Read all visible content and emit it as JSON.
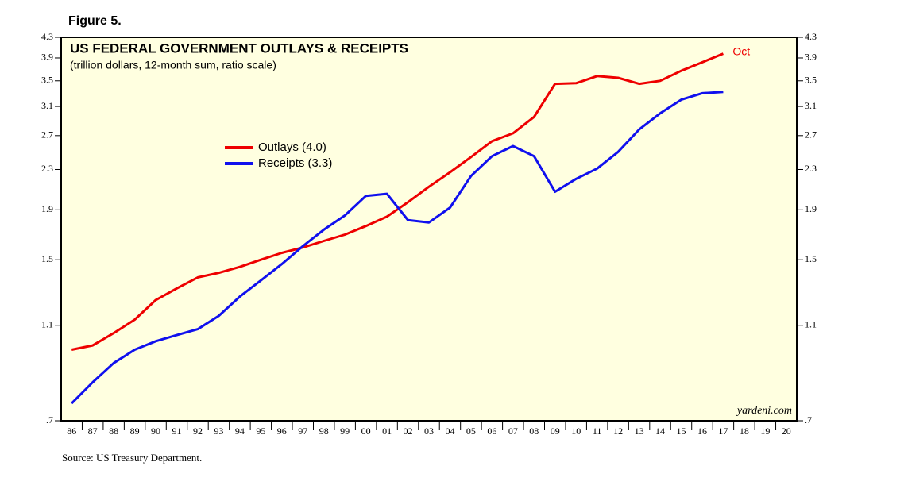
{
  "figure_label": "Figure 5.",
  "chart_data": {
    "type": "line",
    "title": "US FEDERAL GOVERNMENT OUTLAYS & RECEIPTS",
    "subtitle": "(trillion dollars, 12-month sum, ratio scale)",
    "categories": [
      "86",
      "87",
      "88",
      "89",
      "90",
      "91",
      "92",
      "93",
      "94",
      "95",
      "96",
      "97",
      "98",
      "99",
      "00",
      "01",
      "02",
      "03",
      "04",
      "05",
      "06",
      "07",
      "08",
      "09",
      "10",
      "11",
      "12",
      "13",
      "14",
      "15",
      "16",
      "17",
      "18",
      "19",
      "20"
    ],
    "series": [
      {
        "name": "Outlays (4.0)",
        "color": "#ee0000",
        "values": [
          0.98,
          1.0,
          1.06,
          1.13,
          1.24,
          1.31,
          1.38,
          1.41,
          1.45,
          1.5,
          1.55,
          1.59,
          1.64,
          1.69,
          1.76,
          1.84,
          1.97,
          2.12,
          2.27,
          2.44,
          2.63,
          2.73,
          2.95,
          3.45,
          3.46,
          3.58,
          3.55,
          3.45,
          3.5,
          3.67,
          3.82,
          3.98,
          null,
          null,
          null
        ]
      },
      {
        "name": "Receipts (3.3)",
        "color": "#1010ee",
        "values": [
          0.76,
          0.84,
          0.92,
          0.98,
          1.02,
          1.05,
          1.08,
          1.15,
          1.26,
          1.36,
          1.47,
          1.6,
          1.73,
          1.85,
          2.03,
          2.05,
          1.81,
          1.79,
          1.92,
          2.23,
          2.45,
          2.57,
          2.45,
          2.07,
          2.2,
          2.31,
          2.5,
          2.78,
          3.0,
          3.2,
          3.3,
          3.32,
          null,
          null,
          null
        ]
      }
    ],
    "yscale": "log",
    "ylim": [
      0.7,
      4.3
    ],
    "yticks": [
      {
        "value": 0.7,
        "label": ".7"
      },
      1.1,
      1.5,
      1.9,
      2.3,
      2.7,
      3.1,
      3.5,
      3.9,
      4.3
    ],
    "annotation": "Oct",
    "watermark": "yardeni.com",
    "source": "Source: US Treasury Department."
  }
}
